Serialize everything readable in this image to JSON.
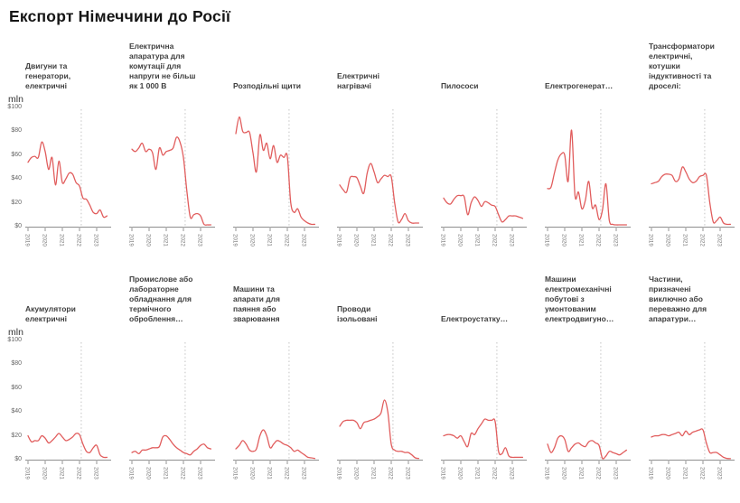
{
  "page": {
    "title": "Експорт Німеччини до Росії"
  },
  "y_axis": {
    "unit_label": "mln",
    "ticks": [
      {
        "label": "$100",
        "value": 100
      },
      {
        "label": "$80",
        "value": 80
      },
      {
        "label": "$60",
        "value": 60
      },
      {
        "label": "$40",
        "value": 40
      },
      {
        "label": "$20",
        "value": 20
      },
      {
        "label": "$0",
        "value": 0
      }
    ]
  },
  "x_axis": {
    "tick_labels": [
      "2019",
      "2020",
      "2021",
      "2022",
      "2023"
    ]
  },
  "colors": {
    "line": "#e15d5d",
    "axis": "#8f8f8f",
    "tick": "#bdbdbd",
    "vline": "#d4d4d4",
    "year_label": "#7a7a7a"
  },
  "chart_data": {
    "type": "line",
    "title": "Експорт Німеччини до Росії",
    "ylabel": "mln",
    "unit": "$ mln",
    "ylim": [
      0,
      100
    ],
    "x": {
      "start": 2019.0,
      "step": 0.2,
      "points": 24,
      "end": 2023.6
    },
    "x_ticks": [
      2019,
      2020,
      2021,
      2022,
      2023
    ],
    "grid": "off",
    "legend": "none",
    "event_vline_x": 2022.1,
    "layout": {
      "rows": 2,
      "cols": 7
    },
    "series": [
      {
        "row": 1,
        "name": "Двигуни та\nгенератори,\nелектричні",
        "values": [
          54,
          58,
          59,
          58,
          71,
          63,
          48,
          58,
          35,
          55,
          37,
          40,
          45,
          44,
          37,
          34,
          24,
          23,
          18,
          12,
          11,
          14,
          8,
          9
        ]
      },
      {
        "row": 1,
        "name": "Електрична\nапаратура для\nкомутації для\nнапруги не більш\nяк 1 000 В",
        "values": [
          65,
          63,
          66,
          70,
          63,
          65,
          62,
          48,
          66,
          60,
          63,
          64,
          66,
          75,
          71,
          58,
          30,
          8,
          10,
          11,
          9,
          2,
          1.5,
          1.5
        ]
      },
      {
        "row": 1,
        "name": "Розподільні щити",
        "values": [
          78,
          92,
          80,
          79,
          79,
          62,
          46,
          77,
          64,
          70,
          57,
          68,
          54,
          60,
          58,
          59,
          20,
          12,
          15,
          8,
          5,
          3,
          2,
          2
        ]
      },
      {
        "row": 1,
        "name": "Електричні\nнагрівачі",
        "values": [
          35,
          31,
          29,
          41,
          42,
          41,
          34,
          28,
          45,
          53,
          46,
          37,
          40,
          43,
          42,
          42,
          20,
          4,
          6,
          11,
          5,
          3,
          3,
          3
        ]
      },
      {
        "row": 1,
        "name": "Пилососи",
        "values": [
          24,
          20,
          19,
          23,
          26,
          26,
          25,
          10,
          20,
          25,
          22,
          17,
          21,
          20,
          18,
          17,
          10,
          4,
          6,
          9,
          9,
          9,
          8,
          7
        ]
      },
      {
        "row": 1,
        "name": "Електрогенерат…",
        "values": [
          32,
          33,
          45,
          56,
          61,
          60,
          38,
          81,
          26,
          29,
          15,
          22,
          38,
          16,
          18,
          6,
          14,
          36,
          5,
          2,
          1.5,
          1.5,
          1.5,
          1.5
        ]
      },
      {
        "row": 1,
        "name": "Трансформатори\nелектричні,\nкотушки\nіндуктивності та\nдроселі:",
        "values": [
          36,
          37,
          38,
          42,
          44,
          44,
          43,
          38,
          40,
          50,
          46,
          40,
          37,
          38,
          42,
          43,
          43,
          20,
          4,
          5,
          8,
          3,
          2,
          2
        ]
      },
      {
        "row": 2,
        "name": "Акумулятори\nелектричні",
        "values": [
          20,
          15,
          16,
          16,
          20,
          18,
          14,
          16,
          19,
          22,
          19,
          16,
          17,
          19,
          22,
          21,
          13,
          7,
          6,
          10,
          12,
          4,
          2,
          2
        ]
      },
      {
        "row": 2,
        "name": "Промислове або\nлабораторне\nобладнання для\nтермічного\nоброблення…",
        "values": [
          6,
          7,
          5,
          8,
          8,
          9,
          10,
          10,
          11,
          19,
          20,
          17,
          13,
          10,
          8,
          6,
          5,
          4,
          7,
          9,
          12,
          13,
          10,
          9
        ]
      },
      {
        "row": 2,
        "name": "Машини та\nапарати для\nпаяння або\nзварювання",
        "values": [
          9,
          12,
          16,
          13,
          8,
          7,
          9,
          20,
          25,
          20,
          10,
          13,
          16,
          15,
          13,
          12,
          10,
          7,
          8,
          6,
          4,
          2,
          1.5,
          1
        ]
      },
      {
        "row": 2,
        "name": "Проводи\nізольовані",
        "values": [
          28,
          32,
          33,
          33,
          33,
          31,
          26,
          31,
          32,
          33,
          34,
          36,
          39,
          50,
          40,
          13,
          8,
          7,
          7,
          6,
          6,
          4,
          1.5,
          1
        ]
      },
      {
        "row": 2,
        "name": "Електроустатку…",
        "values": [
          20,
          21,
          21,
          20,
          18,
          20,
          15,
          11,
          22,
          21,
          26,
          30,
          34,
          33,
          33,
          32,
          7,
          5,
          10,
          3,
          2,
          2,
          2,
          2
        ]
      },
      {
        "row": 2,
        "name": "Машини\nелектромеханічні\nпобутові з\nумонтованим\nелектродвигуно…",
        "values": [
          13,
          6,
          10,
          18,
          20,
          17,
          7,
          10,
          13,
          14,
          12,
          11,
          15,
          16,
          14,
          12,
          1,
          3,
          7,
          6,
          5,
          4,
          6,
          8
        ]
      },
      {
        "row": 2,
        "name": "Частини,\nпризначені\nвиключно або\nпереважно для\nапаратури…",
        "values": [
          19,
          20,
          20,
          21,
          21,
          20,
          21,
          22,
          23,
          20,
          24,
          21,
          23,
          24,
          25,
          25,
          14,
          6,
          6,
          6,
          4,
          2,
          1,
          0.8
        ]
      }
    ]
  }
}
